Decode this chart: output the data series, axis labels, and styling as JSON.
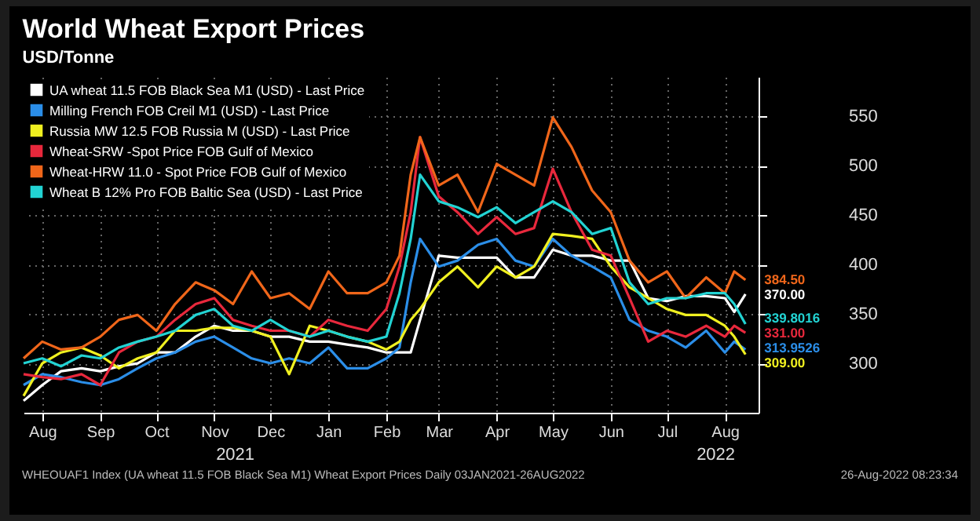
{
  "chart_data": {
    "type": "line",
    "title": "World Wheat Export Prices",
    "subtitle": "USD/Tonne",
    "x": [
      "2021-08-05",
      "2021-08-15",
      "2021-08-25",
      "2021-09-05",
      "2021-09-15",
      "2021-09-25",
      "2021-10-05",
      "2021-10-15",
      "2021-10-25",
      "2021-11-05",
      "2021-11-15",
      "2021-11-25",
      "2021-12-05",
      "2021-12-15",
      "2021-12-25",
      "2022-01-05",
      "2022-01-15",
      "2022-01-25",
      "2022-02-05",
      "2022-02-15",
      "2022-02-22",
      "2022-02-28",
      "2022-03-05",
      "2022-03-15",
      "2022-03-25",
      "2022-04-05",
      "2022-04-15",
      "2022-04-25",
      "2022-05-05",
      "2022-05-15",
      "2022-05-25",
      "2022-06-05",
      "2022-06-15",
      "2022-06-25",
      "2022-07-05",
      "2022-07-15",
      "2022-07-25",
      "2022-08-05",
      "2022-08-15",
      "2022-08-20",
      "2022-08-26"
    ],
    "series": [
      {
        "name": "UA wheat 11.5 FOB Black Sea M1 (USD) - Last Price",
        "color": "#ffffff",
        "values": [
          262,
          278,
          292,
          295,
          292,
          297,
          300,
          311,
          311,
          327,
          338,
          333,
          333,
          327,
          327,
          322,
          322,
          319,
          316,
          311,
          311,
          311,
          344,
          409,
          407,
          407,
          407,
          387,
          387,
          415,
          409,
          409,
          404,
          404,
          366,
          363,
          368,
          368,
          366,
          352,
          370
        ],
        "value_labels": [
          null,
          null,
          null,
          null,
          null,
          null,
          null,
          null,
          null,
          null,
          null,
          null,
          null,
          null,
          null,
          null,
          null,
          null,
          null,
          null,
          null,
          null,
          null,
          null,
          null,
          null,
          null,
          null,
          null,
          null,
          null,
          null,
          null,
          null,
          null,
          null,
          null,
          null,
          null,
          null,
          "370.00"
        ]
      },
      {
        "name": "Milling French FOB Creil M1 (USD) - Last Price",
        "color": "#2b8ee8",
        "values": [
          278,
          289,
          286,
          281,
          278,
          284,
          295,
          305,
          311,
          322,
          327,
          316,
          305,
          300,
          305,
          300,
          316,
          295,
          295,
          305,
          316,
          382,
          426,
          398,
          404,
          420,
          426,
          404,
          398,
          426,
          409,
          398,
          387,
          344,
          333,
          327,
          316,
          333,
          311,
          322,
          313.9526
        ],
        "value_labels": [
          null,
          null,
          null,
          null,
          null,
          null,
          null,
          null,
          null,
          null,
          null,
          null,
          null,
          null,
          null,
          null,
          null,
          null,
          null,
          null,
          null,
          null,
          null,
          null,
          null,
          null,
          null,
          null,
          null,
          null,
          null,
          null,
          null,
          null,
          null,
          null,
          null,
          null,
          null,
          null,
          "313.9526"
        ]
      },
      {
        "name": "Russia MW 12.5 FOB Russia M (USD) - Last Price",
        "color": "#f0f020",
        "values": [
          267,
          300,
          311,
          316,
          308,
          295,
          305,
          311,
          333,
          333,
          336,
          336,
          333,
          327,
          289,
          338,
          333,
          327,
          322,
          314,
          322,
          344,
          355,
          382,
          398,
          377,
          398,
          387,
          398,
          431,
          429,
          426,
          398,
          377,
          366,
          355,
          349,
          349,
          338,
          327,
          309
        ],
        "value_labels": [
          null,
          null,
          null,
          null,
          null,
          null,
          null,
          null,
          null,
          null,
          null,
          null,
          null,
          null,
          null,
          null,
          null,
          null,
          null,
          null,
          null,
          null,
          null,
          null,
          null,
          null,
          null,
          null,
          null,
          null,
          null,
          null,
          null,
          null,
          null,
          null,
          null,
          null,
          null,
          null,
          "309.00"
        ]
      },
      {
        "name": "Wheat-SRW -Spot Price FOB Gulf of Mexico",
        "color": "#e8283c",
        "values": [
          289,
          286,
          284,
          289,
          278,
          311,
          322,
          327,
          344,
          360,
          366,
          344,
          338,
          333,
          333,
          327,
          344,
          338,
          333,
          355,
          398,
          453,
          529,
          469,
          453,
          431,
          448,
          431,
          437,
          497,
          453,
          415,
          409,
          366,
          322,
          333,
          327,
          338,
          327,
          338,
          331
        ],
        "value_labels": [
          null,
          null,
          null,
          null,
          null,
          null,
          null,
          null,
          null,
          null,
          null,
          null,
          null,
          null,
          null,
          null,
          null,
          null,
          null,
          null,
          null,
          null,
          null,
          null,
          null,
          null,
          null,
          null,
          null,
          null,
          null,
          null,
          null,
          null,
          null,
          null,
          null,
          null,
          null,
          null,
          "331.00"
        ]
      },
      {
        "name": "Wheat-HRW 11.0 - Spot Price FOB Gulf of Mexico",
        "color": "#f0661a",
        "values": [
          305,
          322,
          314,
          316,
          327,
          344,
          349,
          333,
          360,
          382,
          374,
          360,
          393,
          366,
          371,
          355,
          393,
          371,
          371,
          382,
          409,
          491,
          529,
          480,
          491,
          453,
          502,
          491,
          480,
          549,
          519,
          475,
          453,
          404,
          382,
          393,
          366,
          387,
          371,
          393,
          384.5
        ],
        "value_labels": [
          null,
          null,
          null,
          null,
          null,
          null,
          null,
          null,
          null,
          null,
          null,
          null,
          null,
          null,
          null,
          null,
          null,
          null,
          null,
          null,
          null,
          null,
          null,
          null,
          null,
          null,
          null,
          null,
          null,
          null,
          null,
          null,
          null,
          null,
          null,
          null,
          null,
          null,
          null,
          null,
          "384.50"
        ]
      },
      {
        "name": "Wheat B 12% Pro FOB Baltic Sea (USD) - Last Price",
        "color": "#22d3d3",
        "values": [
          300,
          305,
          297,
          308,
          305,
          316,
          322,
          327,
          333,
          349,
          355,
          338,
          333,
          344,
          333,
          327,
          333,
          327,
          322,
          327,
          371,
          426,
          491,
          464,
          458,
          448,
          458,
          442,
          453,
          464,
          453,
          431,
          437,
          382,
          360,
          366,
          366,
          371,
          371,
          360,
          339.8016
        ],
        "value_labels": [
          null,
          null,
          null,
          null,
          null,
          null,
          null,
          null,
          null,
          null,
          null,
          null,
          null,
          null,
          null,
          null,
          null,
          null,
          null,
          null,
          null,
          null,
          null,
          null,
          null,
          null,
          null,
          null,
          null,
          null,
          null,
          null,
          null,
          null,
          null,
          null,
          null,
          null,
          null,
          null,
          "339.8016"
        ]
      }
    ],
    "xlim": [
      "2021-08-05",
      "2022-09-02"
    ],
    "xticks": [
      {
        "value": "2021-08-15",
        "label": "Aug"
      },
      {
        "value": "2021-09-15",
        "label": "Sep"
      },
      {
        "value": "2021-10-15",
        "label": "Oct"
      },
      {
        "value": "2021-11-15",
        "label": "Nov"
      },
      {
        "value": "2021-12-15",
        "label": "Dec"
      },
      {
        "value": "2022-01-15",
        "label": "Jan"
      },
      {
        "value": "2022-02-15",
        "label": "Feb"
      },
      {
        "value": "2022-03-15",
        "label": "Mar"
      },
      {
        "value": "2022-04-15",
        "label": "Apr"
      },
      {
        "value": "2022-05-15",
        "label": "May"
      },
      {
        "value": "2022-06-15",
        "label": "Jun"
      },
      {
        "value": "2022-07-15",
        "label": "Jul"
      },
      {
        "value": "2022-08-15",
        "label": "Aug"
      }
    ],
    "ylim": [
      250,
      590
    ],
    "yticks": [
      300,
      350,
      400,
      450,
      500,
      550
    ],
    "grid": true,
    "legend": "top left",
    "annotations": [
      "2021",
      "2022",
      "WHEOUAF1 Index (UA wheat 11.5 FOB Black Sea M1) Wheat Export Prices  Daily 03JAN2021-26AUG2022",
      "26-Aug-2022 08:23:34"
    ]
  }
}
